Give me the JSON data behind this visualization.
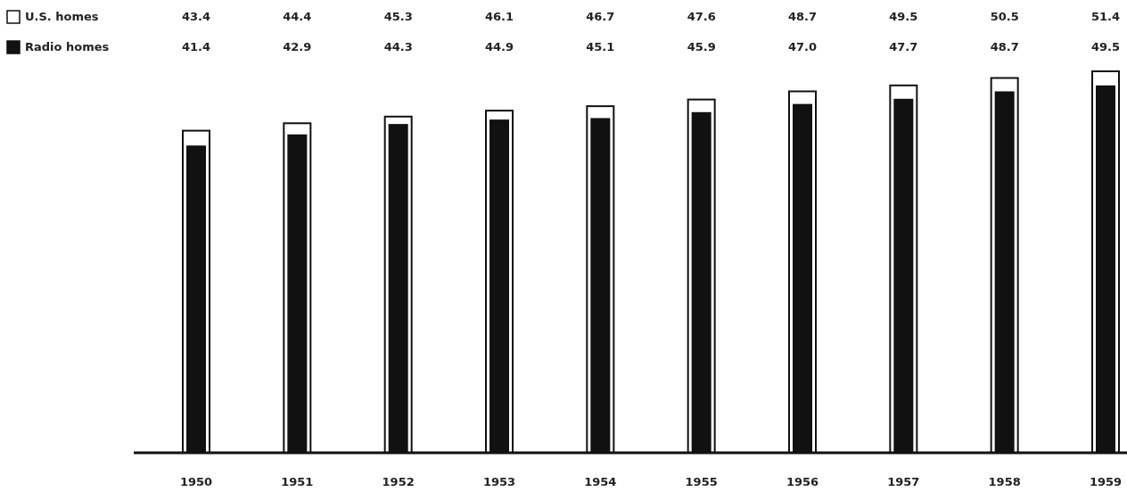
{
  "chart_data": {
    "type": "bar",
    "categories": [
      "1950",
      "1951",
      "1952",
      "1953",
      "1954",
      "1955",
      "1956",
      "1957",
      "1958",
      "1959"
    ],
    "series": [
      {
        "name": "U.S. homes",
        "color": "#ffffff",
        "values": [
          43.4,
          44.4,
          45.3,
          46.1,
          46.7,
          47.6,
          48.7,
          49.5,
          50.5,
          51.4
        ],
        "value_labels": [
          "43.4",
          "44.4",
          "45.3",
          "46.1",
          "46.7",
          "47.6",
          "48.7",
          "49.5",
          "50.5",
          "51.4"
        ]
      },
      {
        "name": "Radio homes",
        "color": "#111111",
        "values": [
          41.4,
          42.9,
          44.3,
          44.9,
          45.1,
          45.9,
          47.0,
          47.7,
          48.7,
          49.5
        ],
        "value_labels": [
          "41.4",
          "42.9",
          "44.3",
          "44.9",
          "45.1",
          "45.9",
          "47.0",
          "47.7",
          "48.7",
          "49.5"
        ]
      }
    ],
    "legend": "top left"
  }
}
